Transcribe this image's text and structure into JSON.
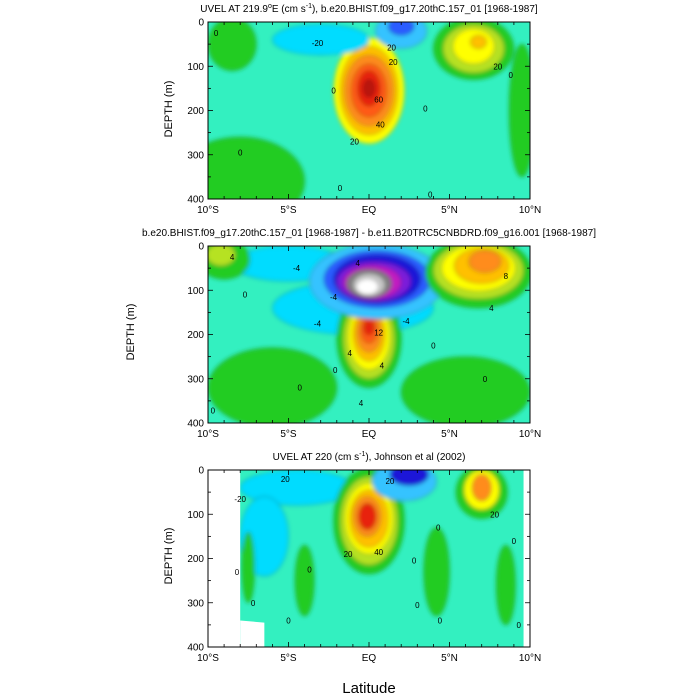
{
  "colors": {
    "ocean_base": "#33f0c0",
    "cyan": "#00dcff",
    "light_blue": "#36c3ff",
    "blue": "#2a5bff",
    "navy": "#1a13d8",
    "green": "#22cc22",
    "light_green": "#66dd22",
    "yellow_green": "#b6e224",
    "yellow": "#ffff00",
    "gold": "#ffc000",
    "orange": "#ff8c1a",
    "dark_orange": "#ff5a14",
    "red": "#e8210d",
    "dark_red": "#b9140a",
    "magenta": "#c21ac2",
    "purple": "#7d1adb",
    "grey": "#808080",
    "light_grey": "#c8c8c8",
    "white": "#ffffff"
  },
  "xaxis": {
    "label": "Latitude",
    "ticks": [
      "10°S",
      "5°S",
      "EQ",
      "5°N",
      "10°N"
    ],
    "tick_values": [
      -10,
      -5,
      0,
      5,
      10
    ]
  },
  "chart_data": [
    {
      "type": "heatmap",
      "title": "UVEL AT 219.9°E (cm s-1), b.e20.BHIST.f09_g17.20thC.157_01 [1968-1987]",
      "title_pre": "UVEL AT 219.9",
      "title_deg": "o",
      "title_mid": "E (cm s",
      "title_exp": "-1",
      "title_post": "), b.e20.BHIST.f09_g17.20thC.157_01 [1968-1987]",
      "xlabel": "",
      "ylabel": "DEPTH (m)",
      "xlim": [
        -10,
        10
      ],
      "ylim": [
        400,
        0
      ],
      "yticks": [
        0,
        100,
        200,
        300,
        400
      ],
      "ytick_labels": [
        "0",
        "100",
        "200",
        "300",
        "400"
      ],
      "base_color": "ocean_base",
      "features": [
        {
          "kind": "ellipse",
          "lat": 0,
          "depth": 155,
          "rlat": 2.2,
          "rdepth": 120,
          "color": "yellow"
        },
        {
          "kind": "ellipse",
          "lat": 0,
          "depth": 155,
          "rlat": 1.8,
          "rdepth": 100,
          "color": "gold"
        },
        {
          "kind": "ellipse",
          "lat": 0,
          "depth": 155,
          "rlat": 1.5,
          "rdepth": 80,
          "color": "orange"
        },
        {
          "kind": "ellipse",
          "lat": 0,
          "depth": 155,
          "rlat": 1.1,
          "rdepth": 60,
          "color": "dark_orange"
        },
        {
          "kind": "ellipse",
          "lat": 0,
          "depth": 150,
          "rlat": 0.7,
          "rdepth": 40,
          "color": "red"
        },
        {
          "kind": "ellipse",
          "lat": 0,
          "depth": 150,
          "rlat": 0.35,
          "rdepth": 20,
          "color": "dark_red"
        },
        {
          "kind": "ellipse",
          "lat": 6.5,
          "depth": 60,
          "rlat": 2.5,
          "rdepth": 70,
          "color": "green"
        },
        {
          "kind": "ellipse",
          "lat": 6.5,
          "depth": 60,
          "rlat": 1.9,
          "rdepth": 55,
          "color": "yellow_green"
        },
        {
          "kind": "ellipse",
          "lat": 6.5,
          "depth": 55,
          "rlat": 1.3,
          "rdepth": 40,
          "color": "yellow"
        },
        {
          "kind": "ellipse",
          "lat": 6.8,
          "depth": 45,
          "rlat": 0.5,
          "rdepth": 15,
          "color": "gold"
        },
        {
          "kind": "ellipse",
          "lat": 2,
          "depth": 20,
          "rlat": 1.6,
          "rdepth": 40,
          "color": "light_blue"
        },
        {
          "kind": "ellipse",
          "lat": 2,
          "depth": 10,
          "rlat": 0.8,
          "rdepth": 20,
          "color": "blue"
        },
        {
          "kind": "ellipse",
          "lat": -3,
          "depth": 40,
          "rlat": 3,
          "rdepth": 35,
          "color": "cyan"
        },
        {
          "kind": "ellipse",
          "lat": -8.5,
          "depth": 50,
          "rlat": 1.5,
          "rdepth": 60,
          "color": "green"
        },
        {
          "kind": "ellipse",
          "lat": -8,
          "depth": 360,
          "rlat": 4,
          "rdepth": 100,
          "color": "green"
        },
        {
          "kind": "ellipse",
          "lat": 9.5,
          "depth": 200,
          "rlat": 0.8,
          "rdepth": 150,
          "color": "green"
        }
      ],
      "contour_labels": [
        {
          "text": "0",
          "lat": -9.5,
          "depth": 25
        },
        {
          "text": "-20",
          "lat": -3.2,
          "depth": 48
        },
        {
          "text": "20",
          "lat": 1.4,
          "depth": 58
        },
        {
          "text": "20",
          "lat": 1.5,
          "depth": 90
        },
        {
          "text": "60",
          "lat": 0.6,
          "depth": 175
        },
        {
          "text": "40",
          "lat": 0.7,
          "depth": 232
        },
        {
          "text": "20",
          "lat": -0.9,
          "depth": 270
        },
        {
          "text": "0",
          "lat": -2.2,
          "depth": 155
        },
        {
          "text": "0",
          "lat": -8,
          "depth": 295
        },
        {
          "text": "0",
          "lat": 3.5,
          "depth": 195
        },
        {
          "text": "0",
          "lat": 8.8,
          "depth": 120
        },
        {
          "text": "20",
          "lat": 8,
          "depth": 100
        },
        {
          "text": "0",
          "lat": -1.8,
          "depth": 375
        },
        {
          "text": "0",
          "lat": 3.8,
          "depth": 390
        }
      ]
    },
    {
      "type": "heatmap",
      "title": "b.e20.BHIST.f09_g17.20thC.157_01 [1968-1987] - b.e11.B20TRC5CNBDRD.f09_g16.001 [1968-1987]",
      "xlabel": "",
      "ylabel": "DEPTH (m)",
      "xlim": [
        -10,
        10
      ],
      "ylim": [
        400,
        0
      ],
      "yticks": [
        0,
        100,
        200,
        300,
        400
      ],
      "ytick_labels": [
        "0",
        "100",
        "200",
        "300",
        "400"
      ],
      "base_color": "ocean_base",
      "features": [
        {
          "kind": "ellipse",
          "lat": -1,
          "depth": 140,
          "rlat": 5,
          "rdepth": 60,
          "color": "cyan"
        },
        {
          "kind": "ellipse",
          "lat": -5,
          "depth": 40,
          "rlat": 3.5,
          "rdepth": 40,
          "color": "cyan"
        },
        {
          "kind": "ellipse",
          "lat": 0,
          "depth": 210,
          "rlat": 2,
          "rdepth": 110,
          "color": "green"
        },
        {
          "kind": "ellipse",
          "lat": 0,
          "depth": 210,
          "rlat": 1.6,
          "rdepth": 90,
          "color": "yellow_green"
        },
        {
          "kind": "ellipse",
          "lat": 0,
          "depth": 205,
          "rlat": 1.3,
          "rdepth": 75,
          "color": "yellow"
        },
        {
          "kind": "ellipse",
          "lat": 0,
          "depth": 200,
          "rlat": 1,
          "rdepth": 60,
          "color": "gold"
        },
        {
          "kind": "ellipse",
          "lat": 0,
          "depth": 195,
          "rlat": 0.75,
          "rdepth": 45,
          "color": "orange"
        },
        {
          "kind": "ellipse",
          "lat": 0,
          "depth": 190,
          "rlat": 0.5,
          "rdepth": 30,
          "color": "dark_orange"
        },
        {
          "kind": "ellipse",
          "lat": 0,
          "depth": 185,
          "rlat": 0.3,
          "rdepth": 16,
          "color": "red"
        },
        {
          "kind": "ellipse",
          "lat": 0.5,
          "depth": 80,
          "rlat": 4.2,
          "rdepth": 85,
          "color": "light_blue"
        },
        {
          "kind": "ellipse",
          "lat": 0.5,
          "depth": 75,
          "rlat": 3.3,
          "rdepth": 65,
          "color": "blue"
        },
        {
          "kind": "ellipse",
          "lat": 0.5,
          "depth": 75,
          "rlat": 2.7,
          "rdepth": 55,
          "color": "navy"
        },
        {
          "kind": "ellipse",
          "lat": 0.3,
          "depth": 80,
          "rlat": 2.3,
          "rdepth": 45,
          "color": "purple"
        },
        {
          "kind": "ellipse",
          "lat": 0.2,
          "depth": 82,
          "rlat": 1.8,
          "rdepth": 38,
          "color": "magenta"
        },
        {
          "kind": "ellipse",
          "lat": 0,
          "depth": 85,
          "rlat": 1.4,
          "rdepth": 32,
          "color": "grey"
        },
        {
          "kind": "ellipse",
          "lat": 0,
          "depth": 88,
          "rlat": 1,
          "rdepth": 26,
          "color": "light_grey"
        },
        {
          "kind": "ellipse",
          "lat": -0.1,
          "depth": 92,
          "rlat": 0.7,
          "rdepth": 18,
          "color": "white"
        },
        {
          "kind": "ellipse",
          "lat": 6.8,
          "depth": 60,
          "rlat": 3.3,
          "rdepth": 80,
          "color": "green"
        },
        {
          "kind": "ellipse",
          "lat": 6.8,
          "depth": 55,
          "rlat": 2.8,
          "rdepth": 65,
          "color": "yellow_green"
        },
        {
          "kind": "ellipse",
          "lat": 6.8,
          "depth": 50,
          "rlat": 2.3,
          "rdepth": 52,
          "color": "yellow"
        },
        {
          "kind": "ellipse",
          "lat": 7,
          "depth": 45,
          "rlat": 1.7,
          "rdepth": 40,
          "color": "gold"
        },
        {
          "kind": "ellipse",
          "lat": 7.2,
          "depth": 35,
          "rlat": 1,
          "rdepth": 25,
          "color": "orange"
        },
        {
          "kind": "ellipse",
          "lat": -9,
          "depth": 30,
          "rlat": 1.6,
          "rdepth": 45,
          "color": "green"
        },
        {
          "kind": "ellipse",
          "lat": -9.2,
          "depth": 20,
          "rlat": 0.9,
          "rdepth": 25,
          "color": "yellow_green"
        },
        {
          "kind": "ellipse",
          "lat": -6,
          "depth": 320,
          "rlat": 4,
          "rdepth": 90,
          "color": "green"
        },
        {
          "kind": "ellipse",
          "lat": 6,
          "depth": 330,
          "rlat": 4,
          "rdepth": 80,
          "color": "green"
        }
      ],
      "contour_labels": [
        {
          "text": "4",
          "lat": -8.5,
          "depth": 25
        },
        {
          "text": "-4",
          "lat": -4.5,
          "depth": 50
        },
        {
          "text": "-4",
          "lat": -2.2,
          "depth": 115
        },
        {
          "text": "-4",
          "lat": -3.2,
          "depth": 175
        },
        {
          "text": "0",
          "lat": -7.7,
          "depth": 110
        },
        {
          "text": "4",
          "lat": -0.7,
          "depth": 38
        },
        {
          "text": "-4",
          "lat": 2.3,
          "depth": 170
        },
        {
          "text": "0",
          "lat": -4.3,
          "depth": 320
        },
        {
          "text": "12",
          "lat": 0.6,
          "depth": 195
        },
        {
          "text": "4",
          "lat": -1.2,
          "depth": 242
        },
        {
          "text": "4",
          "lat": 0.8,
          "depth": 270
        },
        {
          "text": "0",
          "lat": 4,
          "depth": 225
        },
        {
          "text": "0",
          "lat": -2.1,
          "depth": 280
        },
        {
          "text": "4",
          "lat": -0.5,
          "depth": 355
        },
        {
          "text": "8",
          "lat": 8.5,
          "depth": 68
        },
        {
          "text": "4",
          "lat": 7.6,
          "depth": 140
        },
        {
          "text": "0",
          "lat": 7.2,
          "depth": 300
        },
        {
          "text": "0",
          "lat": -9.7,
          "depth": 372
        }
      ]
    },
    {
      "type": "heatmap",
      "title": "UVEL AT 220 (cm s-1), Johnson et al (2002)",
      "title_pre": "UVEL AT 220 (cm s",
      "title_exp": "-1",
      "title_post": "), Johnson et al (2002)",
      "xlabel": "Latitude",
      "ylabel": "DEPTH (m)",
      "xlim": [
        -10,
        10
      ],
      "ylim": [
        400,
        0
      ],
      "yticks": [
        0,
        100,
        200,
        300,
        400
      ],
      "ytick_labels": [
        "0",
        "100",
        "200",
        "300",
        "400"
      ],
      "base_color": "ocean_base",
      "valid_lat_range": [
        -8,
        9.6
      ],
      "features": [
        {
          "kind": "ellipse",
          "lat": -4.5,
          "depth": 40,
          "rlat": 3.5,
          "rdepth": 40,
          "color": "cyan"
        },
        {
          "kind": "ellipse",
          "lat": -6.5,
          "depth": 150,
          "rlat": 1.5,
          "rdepth": 90,
          "color": "cyan"
        },
        {
          "kind": "ellipse",
          "lat": 0,
          "depth": 115,
          "rlat": 2.2,
          "rdepth": 120,
          "color": "green"
        },
        {
          "kind": "ellipse",
          "lat": 0,
          "depth": 115,
          "rlat": 1.8,
          "rdepth": 100,
          "color": "yellow_green"
        },
        {
          "kind": "ellipse",
          "lat": 0,
          "depth": 110,
          "rlat": 1.5,
          "rdepth": 80,
          "color": "yellow"
        },
        {
          "kind": "ellipse",
          "lat": 0,
          "depth": 110,
          "rlat": 1.2,
          "rdepth": 65,
          "color": "gold"
        },
        {
          "kind": "ellipse",
          "lat": -0.1,
          "depth": 105,
          "rlat": 0.85,
          "rdepth": 45,
          "color": "orange"
        },
        {
          "kind": "ellipse",
          "lat": -0.1,
          "depth": 105,
          "rlat": 0.55,
          "rdepth": 30,
          "color": "red"
        },
        {
          "kind": "ellipse",
          "lat": 2.2,
          "depth": 25,
          "rlat": 2,
          "rdepth": 45,
          "color": "light_blue"
        },
        {
          "kind": "ellipse",
          "lat": 2.5,
          "depth": 10,
          "rlat": 1.2,
          "rdepth": 25,
          "color": "navy"
        },
        {
          "kind": "ellipse",
          "lat": 7,
          "depth": 50,
          "rlat": 1.6,
          "rdepth": 60,
          "color": "green"
        },
        {
          "kind": "ellipse",
          "lat": 7,
          "depth": 45,
          "rlat": 1.1,
          "rdepth": 45,
          "color": "yellow"
        },
        {
          "kind": "ellipse",
          "lat": 7,
          "depth": 40,
          "rlat": 0.6,
          "rdepth": 30,
          "color": "orange"
        },
        {
          "kind": "ellipse",
          "lat": 4.2,
          "depth": 230,
          "rlat": 0.8,
          "rdepth": 100,
          "color": "green"
        },
        {
          "kind": "ellipse",
          "lat": -4,
          "depth": 250,
          "rlat": 0.6,
          "rdepth": 80,
          "color": "green"
        },
        {
          "kind": "ellipse",
          "lat": -7.5,
          "depth": 220,
          "rlat": 0.4,
          "rdepth": 80,
          "color": "green"
        },
        {
          "kind": "ellipse",
          "lat": 8.5,
          "depth": 260,
          "rlat": 0.6,
          "rdepth": 90,
          "color": "green"
        }
      ],
      "contour_labels": [
        {
          "text": "-20",
          "lat": -8,
          "depth": 65
        },
        {
          "text": "20",
          "lat": -5.2,
          "depth": 20
        },
        {
          "text": "20",
          "lat": 1.3,
          "depth": 25
        },
        {
          "text": "20",
          "lat": -1.3,
          "depth": 190
        },
        {
          "text": "40",
          "lat": 0.6,
          "depth": 185
        },
        {
          "text": "20",
          "lat": 7.8,
          "depth": 100
        },
        {
          "text": "0",
          "lat": 4.3,
          "depth": 130
        },
        {
          "text": "0",
          "lat": -8.2,
          "depth": 230
        },
        {
          "text": "0",
          "lat": -3.7,
          "depth": 225
        },
        {
          "text": "0",
          "lat": 2.8,
          "depth": 205
        },
        {
          "text": "0",
          "lat": 9,
          "depth": 160
        },
        {
          "text": "0",
          "lat": -7.2,
          "depth": 300
        },
        {
          "text": "0",
          "lat": 3,
          "depth": 305
        },
        {
          "text": "0",
          "lat": 4.4,
          "depth": 340
        },
        {
          "text": "0",
          "lat": -5,
          "depth": 340
        },
        {
          "text": "0",
          "lat": 9.3,
          "depth": 350
        }
      ]
    }
  ]
}
